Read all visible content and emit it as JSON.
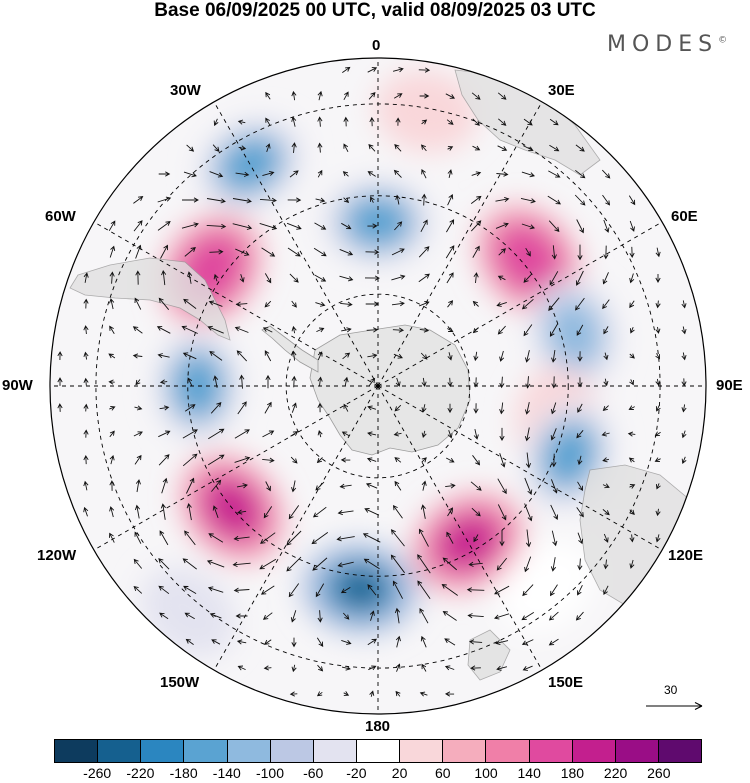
{
  "title": "Base 06/09/2025 00 UTC, valid 08/09/2025 03 UTC",
  "brand": {
    "name": "MODES",
    "mark": "©"
  },
  "longitude_labels": {
    "lon_0": "0",
    "lon_30e": "30E",
    "lon_60e": "60E",
    "lon_90e": "90E",
    "lon_120e": "120E",
    "lon_150e": "150E",
    "lon_180": "180",
    "lon_150w": "150W",
    "lon_120w": "120W",
    "lon_90w": "90W",
    "lon_60w": "60W",
    "lon_30w": "30W"
  },
  "reference_vector": {
    "value": "30"
  },
  "colorbar": {
    "colors": [
      "#0d3b5e",
      "#15608f",
      "#2b86c0",
      "#5aa3d2",
      "#8fbadf",
      "#bcc8e4",
      "#e3e3f0",
      "#ffffff",
      "#f9d7da",
      "#f5adbd",
      "#f07fa8",
      "#e04a9f",
      "#c31f8e",
      "#9a0d86",
      "#5f0a6e"
    ],
    "labels": [
      "-260",
      "-220",
      "-180",
      "-140",
      "-100",
      "-60",
      "-20",
      "20",
      "60",
      "100",
      "140",
      "180",
      "220",
      "260"
    ]
  },
  "map": {
    "projection": "south-polar-stereographic",
    "field": "geopotential-height-anomaly",
    "center_lat": -90,
    "outer_lat": -20,
    "latitude_circles": [
      -80,
      -60,
      -40
    ],
    "longitude_lines_deg": [
      0,
      30,
      60,
      90,
      120,
      150,
      180,
      210,
      240,
      270,
      300,
      330
    ],
    "anomalies": [
      {
        "lon": 10,
        "dist": 0.85,
        "value": 60
      },
      {
        "lon": -30,
        "dist": 0.78,
        "value": -140
      },
      {
        "lon": 0,
        "dist": 0.5,
        "value": -140
      },
      {
        "lon": -55,
        "dist": 0.62,
        "value": 180
      },
      {
        "lon": 50,
        "dist": 0.6,
        "value": 180
      },
      {
        "lon": 75,
        "dist": 0.62,
        "value": -100
      },
      {
        "lon": -90,
        "dist": 0.55,
        "value": -140
      },
      {
        "lon": 100,
        "dist": 0.55,
        "value": 60
      },
      {
        "lon": 110,
        "dist": 0.62,
        "value": -140
      },
      {
        "lon": -130,
        "dist": 0.58,
        "value": 220
      },
      {
        "lon": -175,
        "dist": 0.62,
        "value": -220
      },
      {
        "lon": 150,
        "dist": 0.55,
        "value": 220
      },
      {
        "lon": 140,
        "dist": 0.8,
        "value": 20
      },
      {
        "lon": -140,
        "dist": 0.9,
        "value": -20
      }
    ]
  }
}
